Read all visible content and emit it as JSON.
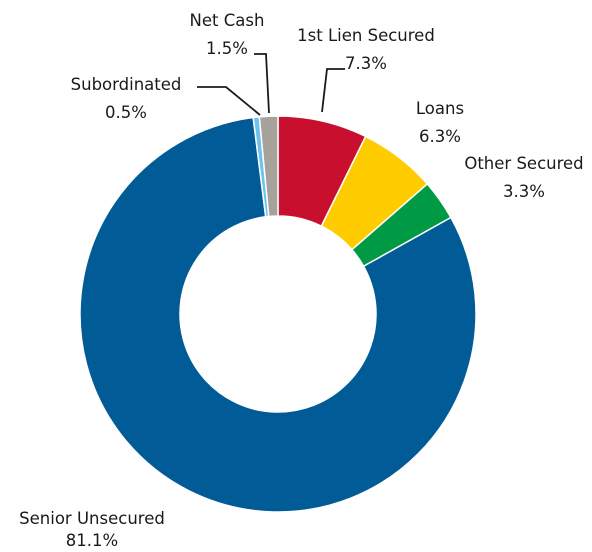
{
  "chart_data": {
    "type": "pie",
    "donut": true,
    "title": "",
    "legend": "none",
    "start_angle_deg": 0,
    "direction": "clockwise",
    "slices": [
      {
        "name": "1st Lien Secured",
        "label": "1st Lien Secured",
        "value": 7.3,
        "value_label": "7.3%",
        "color": "#c8102e"
      },
      {
        "name": "Loans",
        "label": "Loans",
        "value": 6.3,
        "value_label": "6.3%",
        "color": "#ffcc00"
      },
      {
        "name": "Other Secured",
        "label": "Other Secured",
        "value": 3.3,
        "value_label": "3.3%",
        "color": "#009a44"
      },
      {
        "name": "Senior Unsecured",
        "label": "Senior Unsecured",
        "value": 81.1,
        "value_label": "81.1%",
        "color": "#005b96"
      },
      {
        "name": "Subordinated",
        "label": "Subordinated",
        "value": 0.5,
        "value_label": "0.5%",
        "color": "#6cc4ee"
      },
      {
        "name": "Net Cash",
        "label": "Net Cash",
        "value": 1.5,
        "value_label": "1.5%",
        "color": "#a7a19b"
      }
    ]
  }
}
